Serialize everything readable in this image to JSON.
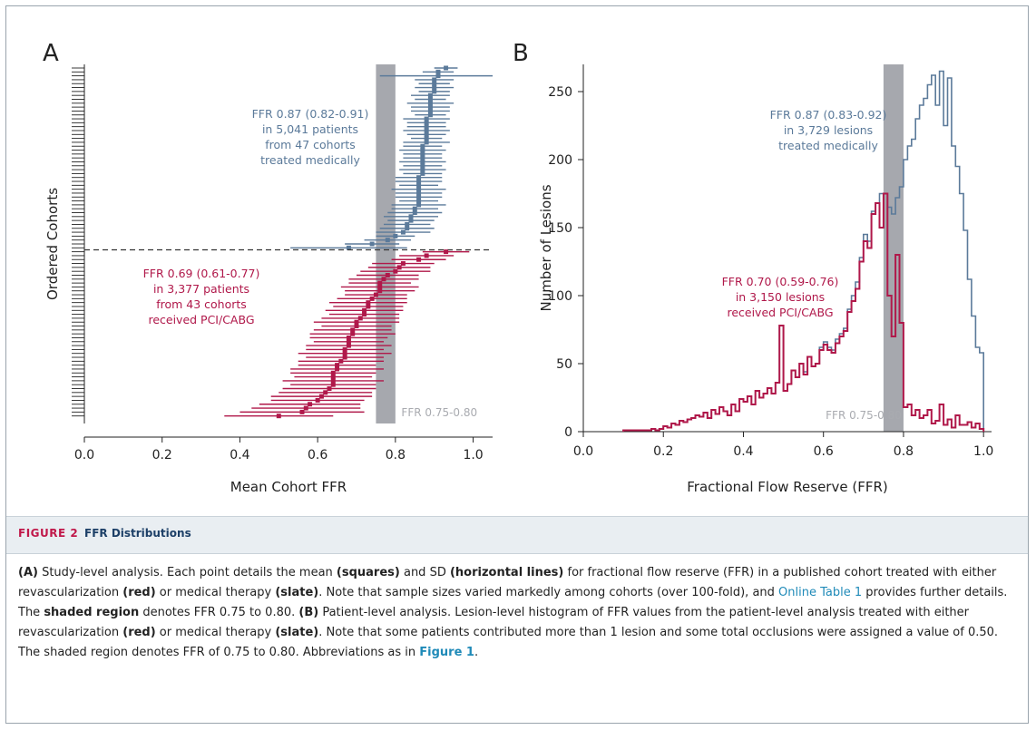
{
  "figure": {
    "number": "FIGURE 2",
    "title": "FFR Distributions",
    "caption": {
      "part_a": "(A)",
      "s1": " Study-level analysis. Each point details the mean ",
      "squares": "(squares)",
      "s2": " and SD ",
      "hlines": "(horizontal lines)",
      "s3": " for fractional flow reserve (FFR) in a published cohort treated with either revascularization ",
      "red1": "(red)",
      "s4": " or medical therapy ",
      "slate1": "(slate)",
      "s5": ". Note that sample sizes varied markedly among cohorts (over 100-fold), and ",
      "online_table": "Online Table 1",
      "s6": " provides further details. The ",
      "shaded": "shaded region",
      "s7": " denotes FFR 0.75 to 0.80. ",
      "part_b": "(B)",
      "s8": " Patient-level analysis. Lesion-level histogram of FFR values from the patient-level analysis treated with either revascularization ",
      "red2": "(red)",
      "s9": " or medical therapy ",
      "slate2": "(slate)",
      "s10": ". Note that some patients contributed more than 1 lesion and some total occlusions were assigned a value of 0.50. The shaded region denotes FFR of 0.75 to 0.80. Abbreviations as in ",
      "figure1": "Figure 1",
      "s11": "."
    }
  },
  "colors": {
    "medical": "#5b7a9a",
    "revasc": "#b0184a",
    "shade": "#a6a8ae",
    "axis": "#222222"
  },
  "chart_data": [
    {
      "type": "scatter",
      "panel_label": "A",
      "xlabel": "Mean Cohort FFR",
      "ylabel": "Ordered Cohorts",
      "xlim": [
        0.0,
        1.05
      ],
      "xticks": [
        "0.0",
        "0.2",
        "0.4",
        "0.6",
        "0.8",
        "1.0"
      ],
      "shaded_range": [
        0.75,
        0.8
      ],
      "shaded_label": "FFR 0.75-0.80",
      "series": [
        {
          "name": "medical",
          "annotation": [
            "FFR 0.87 (0.82-0.91)",
            "in 5,041 patients",
            "from 47 cohorts",
            "treated medically"
          ],
          "means": [
            0.93,
            0.91,
            0.91,
            0.9,
            0.9,
            0.9,
            0.9,
            0.89,
            0.89,
            0.89,
            0.89,
            0.89,
            0.89,
            0.88,
            0.88,
            0.88,
            0.88,
            0.88,
            0.88,
            0.88,
            0.87,
            0.87,
            0.87,
            0.87,
            0.87,
            0.87,
            0.87,
            0.87,
            0.86,
            0.86,
            0.86,
            0.86,
            0.86,
            0.86,
            0.86,
            0.86,
            0.85,
            0.85,
            0.84,
            0.84,
            0.83,
            0.83,
            0.82,
            0.8,
            0.78,
            0.74,
            0.68
          ],
          "sd": [
            0.03,
            0.04,
            0.15,
            0.05,
            0.04,
            0.05,
            0.04,
            0.05,
            0.04,
            0.06,
            0.05,
            0.05,
            0.04,
            0.06,
            0.05,
            0.05,
            0.06,
            0.05,
            0.04,
            0.06,
            0.05,
            0.06,
            0.05,
            0.05,
            0.06,
            0.05,
            0.06,
            0.05,
            0.06,
            0.06,
            0.05,
            0.07,
            0.06,
            0.06,
            0.05,
            0.07,
            0.06,
            0.07,
            0.07,
            0.06,
            0.06,
            0.07,
            0.07,
            0.05,
            0.06,
            0.07,
            0.15
          ]
        },
        {
          "name": "revascularization",
          "annotation": [
            "FFR 0.69 (0.61-0.77)",
            "in 3,377 patients",
            "from 43 cohorts",
            "received PCI/CABG"
          ],
          "means": [
            0.93,
            0.88,
            0.86,
            0.82,
            0.81,
            0.8,
            0.78,
            0.77,
            0.76,
            0.76,
            0.76,
            0.75,
            0.74,
            0.73,
            0.73,
            0.72,
            0.72,
            0.71,
            0.7,
            0.7,
            0.69,
            0.69,
            0.68,
            0.68,
            0.68,
            0.67,
            0.67,
            0.67,
            0.66,
            0.65,
            0.65,
            0.64,
            0.64,
            0.64,
            0.64,
            0.63,
            0.62,
            0.61,
            0.6,
            0.58,
            0.57,
            0.56,
            0.5
          ],
          "sd": [
            0.06,
            0.07,
            0.07,
            0.08,
            0.08,
            0.09,
            0.08,
            0.09,
            0.08,
            0.1,
            0.09,
            0.08,
            0.09,
            0.1,
            0.09,
            0.1,
            0.09,
            0.1,
            0.11,
            0.09,
            0.1,
            0.11,
            0.1,
            0.09,
            0.11,
            0.1,
            0.12,
            0.1,
            0.11,
            0.1,
            0.12,
            0.11,
            0.1,
            0.13,
            0.11,
            0.12,
            0.12,
            0.13,
            0.12,
            0.13,
            0.14,
            0.16,
            0.14
          ]
        }
      ]
    },
    {
      "type": "line",
      "style": "step-histogram",
      "panel_label": "B",
      "xlabel": "Fractional Flow Reserve (FFR)",
      "ylabel": "Number of Lesions",
      "xlim": [
        0.0,
        1.02
      ],
      "ylim": [
        0,
        270
      ],
      "xticks": [
        "0.0",
        "0.2",
        "0.4",
        "0.6",
        "0.8",
        "1.0"
      ],
      "yticks": [
        0,
        50,
        100,
        150,
        200,
        250
      ],
      "shaded_range": [
        0.75,
        0.8
      ],
      "shaded_label": "FFR 0.75-0.80",
      "bin_width": 0.01,
      "series": [
        {
          "name": "medical",
          "annotation": [
            "FFR 0.87 (0.83-0.92)",
            "in 3,729 lesions",
            "treated medically"
          ],
          "x": [
            0.1,
            0.11,
            0.12,
            0.13,
            0.14,
            0.15,
            0.16,
            0.17,
            0.18,
            0.19,
            0.2,
            0.21,
            0.22,
            0.23,
            0.24,
            0.25,
            0.26,
            0.27,
            0.28,
            0.29,
            0.3,
            0.31,
            0.32,
            0.33,
            0.34,
            0.35,
            0.36,
            0.37,
            0.38,
            0.39,
            0.4,
            0.41,
            0.42,
            0.43,
            0.44,
            0.45,
            0.46,
            0.47,
            0.48,
            0.49,
            0.5,
            0.51,
            0.52,
            0.53,
            0.54,
            0.55,
            0.56,
            0.57,
            0.58,
            0.59,
            0.6,
            0.61,
            0.62,
            0.63,
            0.64,
            0.65,
            0.66,
            0.67,
            0.68,
            0.69,
            0.7,
            0.71,
            0.72,
            0.73,
            0.74,
            0.75,
            0.76,
            0.77,
            0.78,
            0.79,
            0.8,
            0.81,
            0.82,
            0.83,
            0.84,
            0.85,
            0.86,
            0.87,
            0.88,
            0.89,
            0.9,
            0.91,
            0.92,
            0.93,
            0.94,
            0.95,
            0.96,
            0.97,
            0.98,
            0.99
          ],
          "y": [
            1,
            1,
            1,
            1,
            1,
            1,
            1,
            2,
            1,
            2,
            4,
            3,
            6,
            5,
            8,
            7,
            9,
            10,
            12,
            11,
            14,
            10,
            16,
            13,
            18,
            15,
            12,
            20,
            15,
            24,
            22,
            26,
            20,
            30,
            25,
            28,
            32,
            28,
            36,
            78,
            30,
            35,
            45,
            40,
            50,
            44,
            55,
            48,
            50,
            62,
            66,
            62,
            60,
            68,
            72,
            76,
            90,
            100,
            110,
            128,
            145,
            140,
            162,
            168,
            175,
            175,
            165,
            160,
            172,
            180,
            200,
            210,
            215,
            230,
            240,
            245,
            255,
            262,
            240,
            265,
            225,
            260,
            210,
            195,
            175,
            148,
            112,
            85,
            62,
            58
          ]
        },
        {
          "name": "revascularization",
          "annotation": [
            "FFR 0.70 (0.59-0.76)",
            "in 3,150 lesions",
            "received PCI/CABG"
          ],
          "x": [
            0.1,
            0.11,
            0.12,
            0.13,
            0.14,
            0.15,
            0.16,
            0.17,
            0.18,
            0.19,
            0.2,
            0.21,
            0.22,
            0.23,
            0.24,
            0.25,
            0.26,
            0.27,
            0.28,
            0.29,
            0.3,
            0.31,
            0.32,
            0.33,
            0.34,
            0.35,
            0.36,
            0.37,
            0.38,
            0.39,
            0.4,
            0.41,
            0.42,
            0.43,
            0.44,
            0.45,
            0.46,
            0.47,
            0.48,
            0.49,
            0.5,
            0.51,
            0.52,
            0.53,
            0.54,
            0.55,
            0.56,
            0.57,
            0.58,
            0.59,
            0.6,
            0.61,
            0.62,
            0.63,
            0.64,
            0.65,
            0.66,
            0.67,
            0.68,
            0.69,
            0.7,
            0.71,
            0.72,
            0.73,
            0.74,
            0.75,
            0.76,
            0.77,
            0.78,
            0.79,
            0.8,
            0.81,
            0.82,
            0.83,
            0.84,
            0.85,
            0.86,
            0.87,
            0.88,
            0.89,
            0.9,
            0.91,
            0.92,
            0.93,
            0.94,
            0.95,
            0.96,
            0.97,
            0.98,
            0.99
          ],
          "y": [
            1,
            1,
            1,
            1,
            1,
            1,
            1,
            2,
            1,
            2,
            4,
            3,
            6,
            5,
            8,
            7,
            9,
            10,
            12,
            11,
            14,
            10,
            16,
            13,
            18,
            15,
            12,
            20,
            15,
            24,
            22,
            26,
            20,
            30,
            25,
            28,
            32,
            28,
            36,
            78,
            30,
            35,
            45,
            40,
            50,
            42,
            55,
            48,
            50,
            60,
            64,
            60,
            58,
            65,
            70,
            74,
            88,
            96,
            105,
            125,
            140,
            135,
            160,
            168,
            150,
            175,
            100,
            70,
            130,
            80,
            18,
            20,
            12,
            16,
            10,
            12,
            16,
            6,
            8,
            20,
            5,
            9,
            3,
            12,
            5,
            5,
            7,
            3,
            6,
            2
          ]
        }
      ]
    }
  ]
}
